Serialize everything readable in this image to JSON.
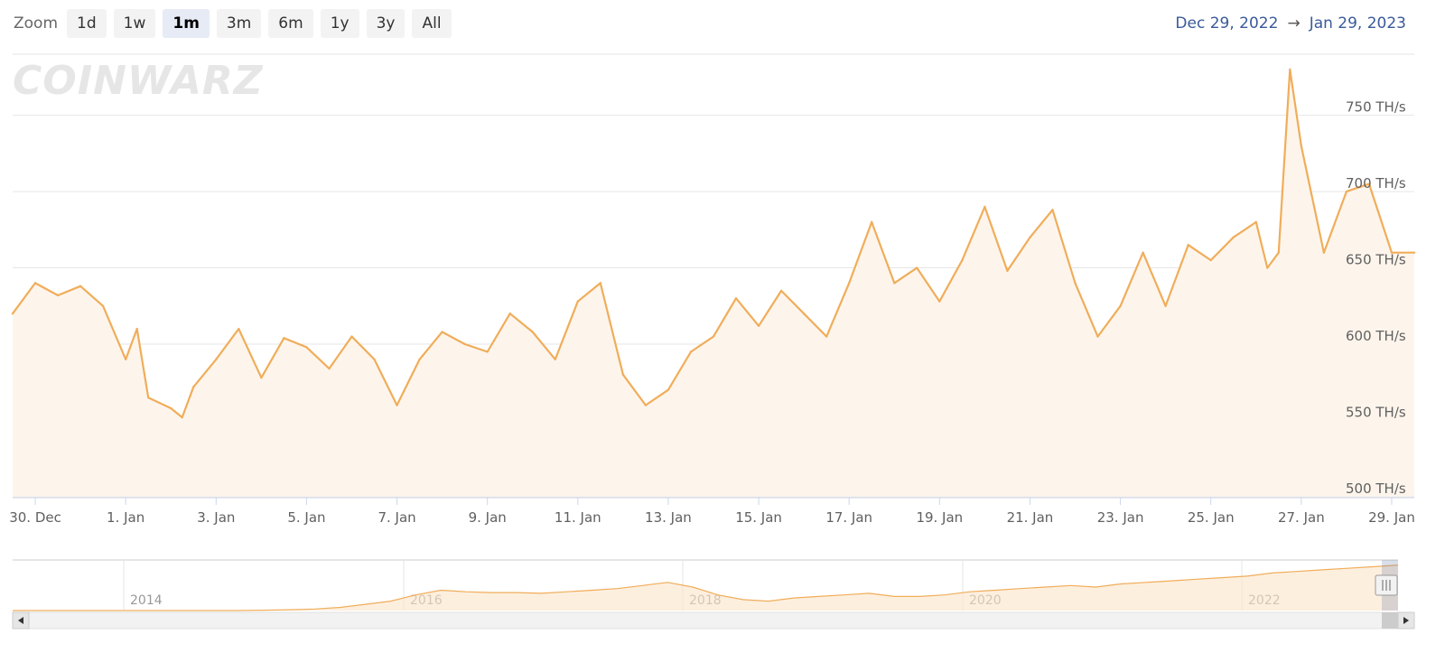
{
  "zoom": {
    "label": "Zoom",
    "buttons": [
      "1d",
      "1w",
      "1m",
      "3m",
      "6m",
      "1y",
      "3y",
      "All"
    ],
    "selected": "1m"
  },
  "range": {
    "from": "Dec 29, 2022",
    "to": "Jan 29, 2023"
  },
  "watermark": "COINWARZ",
  "colors": {
    "line": "#f0ad5a",
    "fill": "#fdf5ec",
    "grid": "#e6e6e6",
    "axis": "#ccd6eb",
    "navFill": "#fbe4c8"
  },
  "chart_data": {
    "type": "area",
    "y_unit": "TH/s",
    "ylim": [
      500,
      790
    ],
    "y_ticks": [
      "500 TH/s",
      "550 TH/s",
      "600 TH/s",
      "650 TH/s",
      "700 TH/s",
      "750 TH/s"
    ],
    "x_ticks": [
      "30. Dec",
      "1. Jan",
      "3. Jan",
      "5. Jan",
      "7. Jan",
      "9. Jan",
      "11. Jan",
      "13. Jan",
      "15. Jan",
      "17. Jan",
      "19. Jan",
      "21. Jan",
      "23. Jan",
      "25. Jan",
      "27. Jan",
      "29. Jan"
    ],
    "series": [
      {
        "x": [
          "2022-12-29 12:00",
          "2022-12-30",
          "2022-12-30 12:00",
          "2022-12-31",
          "2022-12-31 12:00",
          "2023-01-01",
          "2023-01-01 06:00",
          "2023-01-01 12:00",
          "2023-01-02",
          "2023-01-02 06:00",
          "2023-01-02 12:00",
          "2023-01-03",
          "2023-01-03 12:00",
          "2023-01-04",
          "2023-01-04 12:00",
          "2023-01-05",
          "2023-01-05 12:00",
          "2023-01-06",
          "2023-01-06 12:00",
          "2023-01-07",
          "2023-01-07 12:00",
          "2023-01-08",
          "2023-01-08 12:00",
          "2023-01-09",
          "2023-01-09 12:00",
          "2023-01-10",
          "2023-01-10 12:00",
          "2023-01-11",
          "2023-01-11 12:00",
          "2023-01-12",
          "2023-01-12 12:00",
          "2023-01-13",
          "2023-01-13 12:00",
          "2023-01-14",
          "2023-01-14 12:00",
          "2023-01-15",
          "2023-01-15 12:00",
          "2023-01-16",
          "2023-01-16 12:00",
          "2023-01-17",
          "2023-01-17 12:00",
          "2023-01-18",
          "2023-01-18 12:00",
          "2023-01-19",
          "2023-01-19 12:00",
          "2023-01-20",
          "2023-01-20 12:00",
          "2023-01-21",
          "2023-01-21 12:00",
          "2023-01-22",
          "2023-01-22 12:00",
          "2023-01-23",
          "2023-01-23 12:00",
          "2023-01-24",
          "2023-01-24 12:00",
          "2023-01-25",
          "2023-01-25 12:00",
          "2023-01-26",
          "2023-01-26 06:00",
          "2023-01-26 12:00",
          "2023-01-26 18:00",
          "2023-01-27",
          "2023-01-27 12:00",
          "2023-01-28",
          "2023-01-28 12:00",
          "2023-01-29",
          "2023-01-29 12:00"
        ],
        "values": [
          620,
          640,
          632,
          638,
          625,
          590,
          610,
          565,
          558,
          552,
          572,
          590,
          610,
          578,
          604,
          598,
          584,
          605,
          590,
          560,
          590,
          608,
          600,
          595,
          620,
          608,
          590,
          628,
          640,
          580,
          560,
          570,
          595,
          605,
          630,
          612,
          635,
          620,
          605,
          640,
          680,
          640,
          650,
          628,
          655,
          690,
          648,
          670,
          688,
          640,
          605,
          625,
          660,
          625,
          665,
          655,
          670,
          680,
          650,
          660,
          780,
          730,
          660,
          700,
          705,
          660,
          660
        ]
      }
    ]
  },
  "navigator": {
    "labels": [
      "2014",
      "2016",
      "2018",
      "2020",
      "2022"
    ],
    "values": [
      0,
      0,
      0,
      0,
      0,
      0,
      0,
      0,
      0,
      0,
      0.5,
      1,
      2,
      4,
      8,
      12,
      20,
      26,
      24,
      23,
      23,
      22,
      24,
      26,
      28,
      32,
      36,
      30,
      20,
      14,
      12,
      16,
      18,
      20,
      22,
      18,
      18,
      20,
      24,
      26,
      28,
      30,
      32,
      30,
      34,
      36,
      38,
      40,
      42,
      44,
      48,
      50,
      52,
      54,
      56,
      58
    ]
  }
}
